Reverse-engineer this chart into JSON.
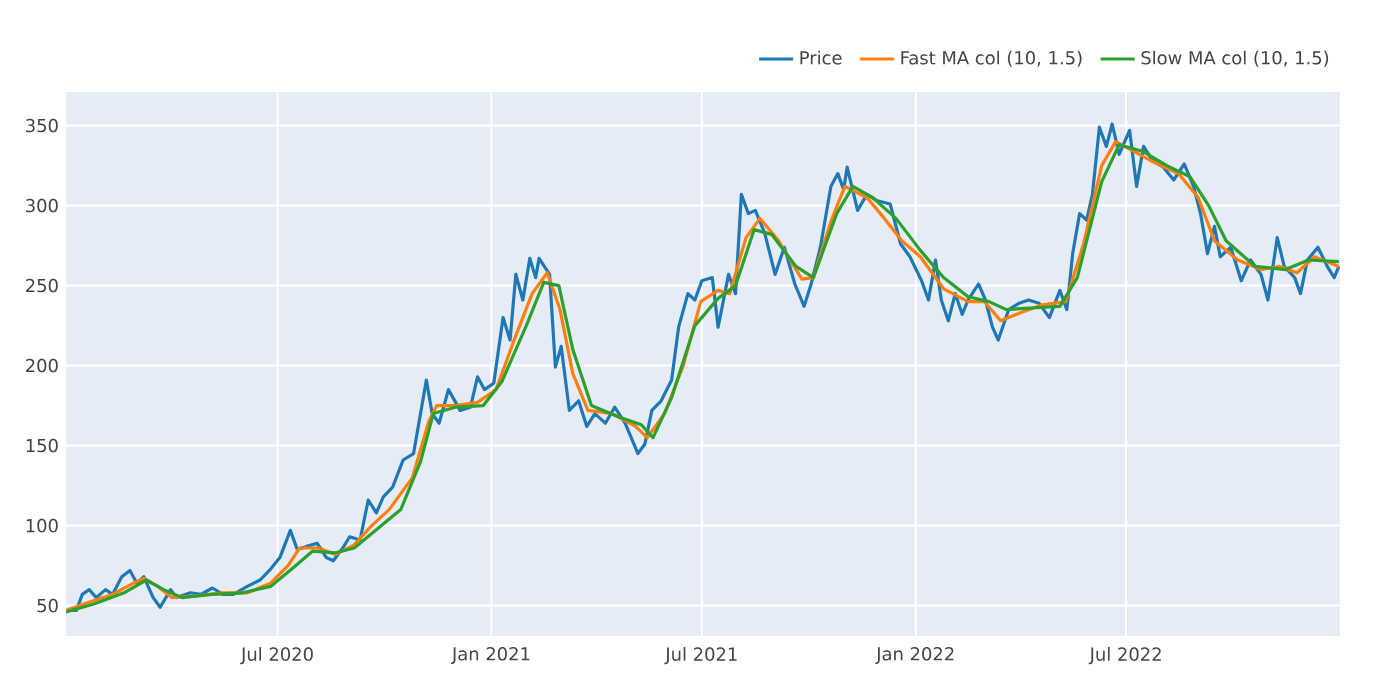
{
  "chart_data": {
    "type": "line",
    "xlim": [
      "2020-01-01",
      "2023-01-01"
    ],
    "xticks": [
      {
        "value": "2020-07-01",
        "label": "Jul 2020"
      },
      {
        "value": "2021-01-01",
        "label": "Jan 2021"
      },
      {
        "value": "2021-07-01",
        "label": "Jul 2021"
      },
      {
        "value": "2022-01-01",
        "label": "Jan 2022"
      },
      {
        "value": "2022-07-01",
        "label": "Jul 2022"
      }
    ],
    "ylim": [
      31,
      371
    ],
    "yticks": [
      50,
      100,
      150,
      200,
      250,
      300,
      350
    ],
    "grid": true,
    "legend": "top right",
    "marker": "none",
    "line_style": "solid",
    "series": [
      {
        "name": "Price",
        "color": "#1f77b4",
        "x": [
          "2020-01-01",
          "2020-01-10",
          "2020-01-15",
          "2020-01-21",
          "2020-01-27",
          "2020-02-04",
          "2020-02-10",
          "2020-02-18",
          "2020-02-25",
          "2020-03-02",
          "2020-03-08",
          "2020-03-16",
          "2020-03-22",
          "2020-03-31",
          "2020-04-05",
          "2020-04-17",
          "2020-04-26",
          "2020-05-06",
          "2020-05-15",
          "2020-05-24",
          "2020-06-05",
          "2020-06-16",
          "2020-06-24",
          "2020-07-03",
          "2020-07-12",
          "2020-07-18",
          "2020-07-26",
          "2020-08-04",
          "2020-08-12",
          "2020-08-18",
          "2020-08-27",
          "2020-09-01",
          "2020-09-10",
          "2020-09-17",
          "2020-09-24",
          "2020-09-30",
          "2020-10-08",
          "2020-10-17",
          "2020-10-26",
          "2020-11-01",
          "2020-11-06",
          "2020-11-11",
          "2020-11-17",
          "2020-11-25",
          "2020-12-05",
          "2020-12-14",
          "2020-12-20",
          "2020-12-26",
          "2021-01-03",
          "2021-01-11",
          "2021-01-17",
          "2021-01-22",
          "2021-01-28",
          "2021-02-03",
          "2021-02-08",
          "2021-02-11",
          "2021-02-20",
          "2021-02-25",
          "2021-03-02",
          "2021-03-09",
          "2021-03-17",
          "2021-03-24",
          "2021-03-31",
          "2021-04-09",
          "2021-04-17",
          "2021-04-26",
          "2021-05-07",
          "2021-05-13",
          "2021-05-19",
          "2021-05-27",
          "2021-06-05",
          "2021-06-11",
          "2021-06-19",
          "2021-06-25",
          "2021-07-01",
          "2021-07-10",
          "2021-07-15",
          "2021-07-24",
          "2021-07-30",
          "2021-08-04",
          "2021-08-10",
          "2021-08-16",
          "2021-08-24",
          "2021-09-02",
          "2021-09-10",
          "2021-09-19",
          "2021-09-27",
          "2021-10-03",
          "2021-10-11",
          "2021-10-20",
          "2021-10-26",
          "2021-10-31",
          "2021-11-03",
          "2021-11-12",
          "2021-11-20",
          "2021-11-29",
          "2021-12-10",
          "2021-12-19",
          "2021-12-27",
          "2022-01-06",
          "2022-01-12",
          "2022-01-18",
          "2022-01-23",
          "2022-01-29",
          "2022-02-04",
          "2022-02-10",
          "2022-02-15",
          "2022-02-24",
          "2022-03-02",
          "2022-03-08",
          "2022-03-13",
          "2022-03-22",
          "2022-03-31",
          "2022-04-08",
          "2022-04-17",
          "2022-04-26",
          "2022-05-05",
          "2022-05-11",
          "2022-05-16",
          "2022-05-22",
          "2022-05-28",
          "2022-06-02",
          "2022-06-08",
          "2022-06-14",
          "2022-06-19",
          "2022-06-25",
          "2022-07-04",
          "2022-07-10",
          "2022-07-16",
          "2022-07-24",
          "2022-08-02",
          "2022-08-11",
          "2022-08-20",
          "2022-08-28",
          "2022-09-03",
          "2022-09-09",
          "2022-09-15",
          "2022-09-20",
          "2022-09-29",
          "2022-10-08",
          "2022-10-16",
          "2022-10-25",
          "2022-10-31",
          "2022-11-08",
          "2022-11-14",
          "2022-11-23",
          "2022-11-28",
          "2022-12-04",
          "2022-12-13",
          "2022-12-21",
          "2022-12-27",
          "2022-12-31"
        ],
        "values": [
          47,
          47,
          57,
          60,
          55,
          60,
          57,
          68,
          72,
          64,
          68,
          55,
          49,
          60,
          55,
          58,
          57,
          61,
          57,
          57,
          62,
          66,
          72,
          80,
          97,
          85,
          87,
          89,
          80,
          78,
          87,
          93,
          91,
          116,
          108,
          118,
          124,
          141,
          145,
          170,
          191,
          170,
          164,
          185,
          172,
          174,
          193,
          185,
          189,
          230,
          216,
          257,
          241,
          267,
          255,
          267,
          257,
          199,
          212,
          172,
          178,
          162,
          170,
          164,
          174,
          164,
          145,
          151,
          172,
          178,
          191,
          224,
          245,
          241,
          253,
          255,
          224,
          257,
          245,
          307,
          295,
          297,
          283,
          257,
          274,
          251,
          237,
          251,
          274,
          312,
          320,
          310,
          324,
          297,
          307,
          303,
          301,
          276,
          268,
          253,
          241,
          266,
          241,
          228,
          245,
          232,
          241,
          251,
          241,
          224,
          216,
          235,
          239,
          241,
          239,
          230,
          247,
          235,
          270,
          295,
          291,
          307,
          349,
          337,
          351,
          332,
          347,
          312,
          337,
          328,
          324,
          316,
          326,
          312,
          295,
          270,
          287,
          268,
          274,
          253,
          266,
          257,
          241,
          280,
          262,
          255,
          245,
          266,
          274,
          262,
          255,
          262
        ]
      },
      {
        "name": "Fast MA col (10, 1.5)",
        "color": "#ff7f0e",
        "x": [
          "2020-01-01",
          "2020-01-20",
          "2020-02-10",
          "2020-02-28",
          "2020-03-08",
          "2020-03-20",
          "2020-04-01",
          "2020-04-20",
          "2020-05-15",
          "2020-06-05",
          "2020-06-25",
          "2020-07-10",
          "2020-07-20",
          "2020-08-05",
          "2020-08-20",
          "2020-09-05",
          "2020-09-20",
          "2020-10-05",
          "2020-10-25",
          "2020-11-08",
          "2020-11-15",
          "2020-12-01",
          "2020-12-20",
          "2021-01-05",
          "2021-01-20",
          "2021-02-05",
          "2021-02-18",
          "2021-03-01",
          "2021-03-12",
          "2021-03-25",
          "2021-04-15",
          "2021-05-05",
          "2021-05-15",
          "2021-05-30",
          "2021-06-15",
          "2021-06-30",
          "2021-07-15",
          "2021-07-25",
          "2021-08-08",
          "2021-08-20",
          "2021-09-05",
          "2021-09-25",
          "2021-10-05",
          "2021-10-20",
          "2021-11-01",
          "2021-11-20",
          "2021-12-05",
          "2021-12-20",
          "2022-01-05",
          "2022-01-25",
          "2022-02-15",
          "2022-03-01",
          "2022-03-15",
          "2022-04-01",
          "2022-04-20",
          "2022-05-10",
          "2022-05-25",
          "2022-06-10",
          "2022-06-22",
          "2022-07-10",
          "2022-07-25",
          "2022-08-15",
          "2022-09-01",
          "2022-09-15",
          "2022-10-05",
          "2022-10-25",
          "2022-11-10",
          "2022-11-25",
          "2022-12-10",
          "2022-12-31"
        ],
        "values": [
          47,
          52,
          57,
          64,
          67,
          62,
          55,
          56,
          58,
          58,
          64,
          75,
          86,
          86,
          82,
          88,
          100,
          110,
          130,
          165,
          175,
          175,
          177,
          185,
          215,
          245,
          258,
          235,
          195,
          172,
          170,
          162,
          155,
          170,
          200,
          240,
          247,
          245,
          280,
          292,
          278,
          254,
          255,
          290,
          312,
          305,
          292,
          278,
          268,
          248,
          240,
          240,
          228,
          233,
          238,
          240,
          275,
          325,
          340,
          333,
          327,
          320,
          305,
          278,
          266,
          260,
          262,
          258,
          268,
          262
        ]
      },
      {
        "name": "Slow MA col (10, 1.5)",
        "color": "#2ca02c",
        "x": [
          "2020-01-01",
          "2020-01-25",
          "2020-02-20",
          "2020-03-10",
          "2020-03-25",
          "2020-04-10",
          "2020-05-05",
          "2020-06-01",
          "2020-06-25",
          "2020-07-15",
          "2020-07-31",
          "2020-08-20",
          "2020-09-05",
          "2020-09-25",
          "2020-10-15",
          "2020-11-01",
          "2020-11-12",
          "2020-12-01",
          "2020-12-25",
          "2021-01-10",
          "2021-01-31",
          "2021-02-15",
          "2021-02-28",
          "2021-03-12",
          "2021-03-28",
          "2021-04-20",
          "2021-05-10",
          "2021-05-20",
          "2021-06-05",
          "2021-06-25",
          "2021-07-15",
          "2021-07-30",
          "2021-08-15",
          "2021-08-30",
          "2021-09-20",
          "2021-10-05",
          "2021-10-25",
          "2021-11-08",
          "2021-11-25",
          "2021-12-15",
          "2022-01-05",
          "2022-01-25",
          "2022-02-15",
          "2022-03-05",
          "2022-03-20",
          "2022-04-10",
          "2022-05-05",
          "2022-05-20",
          "2022-06-10",
          "2022-06-25",
          "2022-07-15",
          "2022-08-05",
          "2022-08-25",
          "2022-09-10",
          "2022-09-25",
          "2022-10-20",
          "2022-11-15",
          "2022-12-05",
          "2022-12-31"
        ],
        "values": [
          46,
          51,
          58,
          66,
          60,
          55,
          57,
          58,
          62,
          74,
          84,
          83,
          86,
          98,
          110,
          140,
          170,
          174,
          175,
          190,
          225,
          252,
          250,
          210,
          175,
          168,
          163,
          155,
          180,
          225,
          242,
          250,
          285,
          282,
          262,
          255,
          295,
          312,
          305,
          292,
          272,
          255,
          243,
          240,
          235,
          236,
          237,
          255,
          315,
          338,
          334,
          325,
          318,
          300,
          278,
          262,
          260,
          266,
          265
        ]
      }
    ]
  }
}
